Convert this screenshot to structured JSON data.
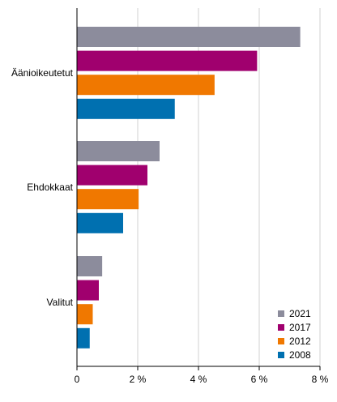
{
  "chart_data": {
    "type": "bar",
    "orientation": "horizontal",
    "categories": [
      "Äänioikeutetut",
      "Ehdokkaat",
      "Valitut"
    ],
    "series": [
      {
        "name": "2021",
        "color": "#8c8c9c",
        "values": [
          7.35,
          2.72,
          0.83
        ]
      },
      {
        "name": "2017",
        "color": "#a0006e",
        "values": [
          5.93,
          2.32,
          0.72
        ]
      },
      {
        "name": "2012",
        "color": "#f07800",
        "values": [
          4.53,
          2.03,
          0.52
        ]
      },
      {
        "name": "2008",
        "color": "#0070b0",
        "values": [
          3.22,
          1.52,
          0.42
        ]
      }
    ],
    "x_ticks": [
      "0",
      "2 %",
      "4 %",
      "6 %",
      "8 %"
    ],
    "xlim": [
      0,
      8
    ],
    "grid": true,
    "legend_position": "bottom-right"
  }
}
